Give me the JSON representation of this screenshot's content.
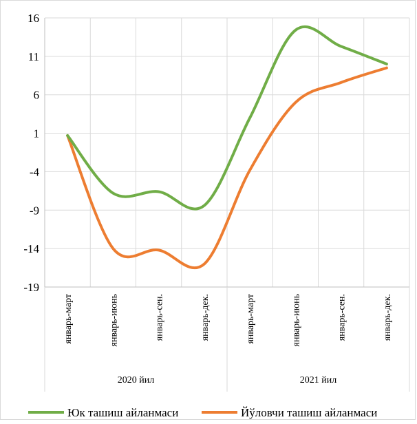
{
  "chart_data": {
    "type": "line",
    "smooth": true,
    "categories": [
      "январь-март",
      "январь-июнь",
      "январь-сен.",
      "январь-дек.",
      "январь-март",
      "январь-июнь",
      "январь-сен.",
      "январь-дек."
    ],
    "groups": [
      {
        "label": "2020 йил",
        "span": [
          0,
          3
        ]
      },
      {
        "label": "2021 йил",
        "span": [
          4,
          7
        ]
      }
    ],
    "series": [
      {
        "name": "Юк ташиш айланмаси",
        "color": "#70ad47",
        "values": [
          0.7,
          -6.8,
          -6.6,
          -8.4,
          3.0,
          14.4,
          12.3,
          10.0
        ]
      },
      {
        "name": "Йўловчи ташиш айланмаси",
        "color": "#ed7d31",
        "values": [
          0.7,
          -14.0,
          -14.2,
          -16.0,
          -3.8,
          5.0,
          7.6,
          9.5
        ]
      }
    ],
    "ylim": [
      -19,
      16
    ],
    "yticks": [
      "16",
      "11",
      "6",
      "1",
      "-4",
      "-9",
      "-14",
      "-19"
    ],
    "grid": true,
    "legend_position": "bottom"
  }
}
